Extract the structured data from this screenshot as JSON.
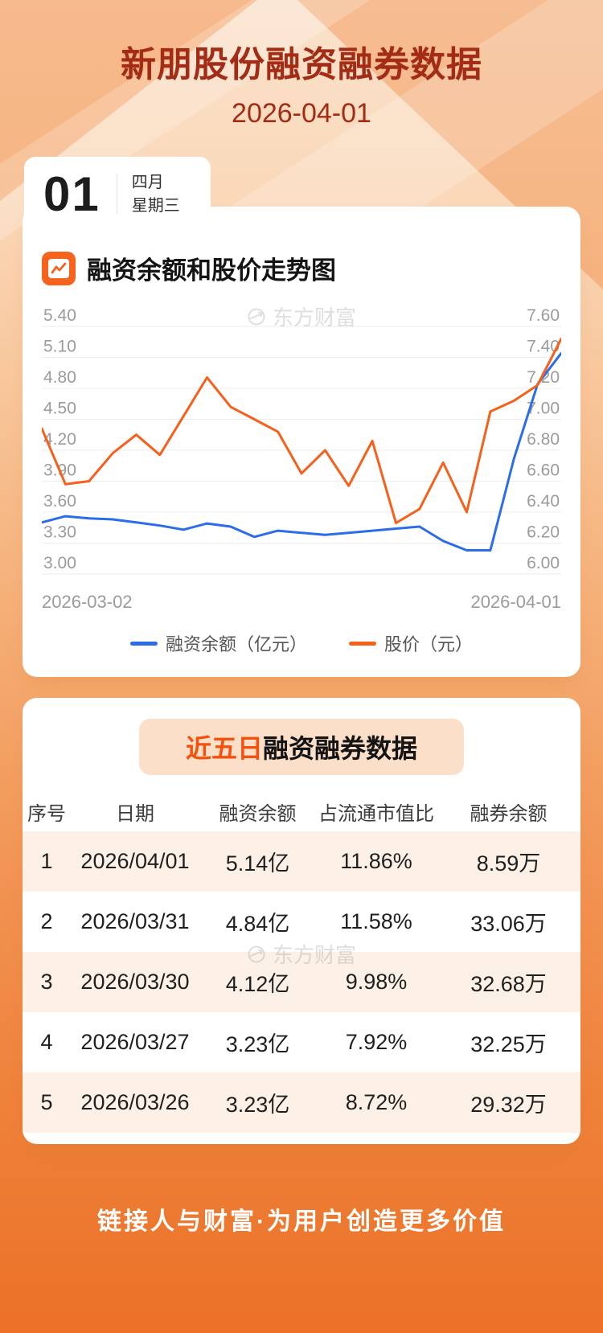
{
  "header": {
    "title": "新朋股份融资融券数据",
    "date": "2026-04-01",
    "day_number": "01",
    "month_label": "四月",
    "weekday_label": "星期三"
  },
  "chart_section": {
    "title": "融资余额和股价走势图",
    "watermark": "东方财富",
    "x_start_label": "2026-03-02",
    "x_end_label": "2026-04-01",
    "legend": [
      {
        "label": "融资余额（亿元）",
        "color": "#2b6de8"
      },
      {
        "label": "股价（元）",
        "color": "#f5611c"
      }
    ]
  },
  "chart_data": {
    "type": "line",
    "title": "融资余额和股价走势图",
    "x_first": "2026-03-02",
    "x_last": "2026-04-01",
    "grid": true,
    "legend_position": "bottom",
    "left_axis": {
      "name": "融资余额（亿元）",
      "min": 3.0,
      "max": 5.4,
      "ticks": [
        "5.40",
        "5.10",
        "4.80",
        "4.50",
        "4.20",
        "3.90",
        "3.60",
        "3.30",
        "3.00"
      ]
    },
    "right_axis": {
      "name": "股价（元）",
      "min": 6.0,
      "max": 7.6,
      "ticks": [
        "7.60",
        "7.40",
        "7.20",
        "7.00",
        "6.80",
        "6.60",
        "6.40",
        "6.20",
        "6.00"
      ]
    },
    "series": [
      {
        "name": "融资余额（亿元）",
        "axis": "left",
        "color": "#2b6de8",
        "values": [
          3.5,
          3.56,
          3.54,
          3.53,
          3.5,
          3.47,
          3.43,
          3.49,
          3.46,
          3.36,
          3.42,
          3.4,
          3.38,
          3.4,
          3.42,
          3.44,
          3.46,
          3.32,
          3.23,
          3.23,
          4.12,
          4.84,
          5.14
        ]
      },
      {
        "name": "股价（元）",
        "axis": "right",
        "color": "#f5611c",
        "values": [
          6.94,
          6.58,
          6.6,
          6.78,
          6.9,
          6.77,
          7.02,
          7.27,
          7.08,
          7.0,
          6.92,
          6.65,
          6.8,
          6.57,
          6.86,
          6.33,
          6.42,
          6.72,
          6.4,
          7.05,
          7.12,
          7.22,
          7.52
        ]
      }
    ]
  },
  "table_section": {
    "title_highlight": "近五日",
    "title_rest": "融资融券数据",
    "watermark": "东方财富",
    "columns": [
      "序号",
      "日期",
      "融资余额",
      "占流通市值比",
      "融券余额"
    ],
    "rows": [
      [
        "1",
        "2026/04/01",
        "5.14亿",
        "11.86%",
        "8.59万"
      ],
      [
        "2",
        "2026/03/31",
        "4.84亿",
        "11.58%",
        "33.06万"
      ],
      [
        "3",
        "2026/03/30",
        "4.12亿",
        "9.98%",
        "32.68万"
      ],
      [
        "4",
        "2026/03/27",
        "3.23亿",
        "7.92%",
        "32.25万"
      ],
      [
        "5",
        "2026/03/26",
        "3.23亿",
        "8.72%",
        "29.32万"
      ]
    ]
  },
  "footer": {
    "text": "链接人与财富·为用户创造更多价值"
  },
  "colors": {
    "accent_red": "#a22c15",
    "highlight_orange": "#f3520e",
    "line_blue": "#2b6de8",
    "line_orange": "#f5611c"
  }
}
